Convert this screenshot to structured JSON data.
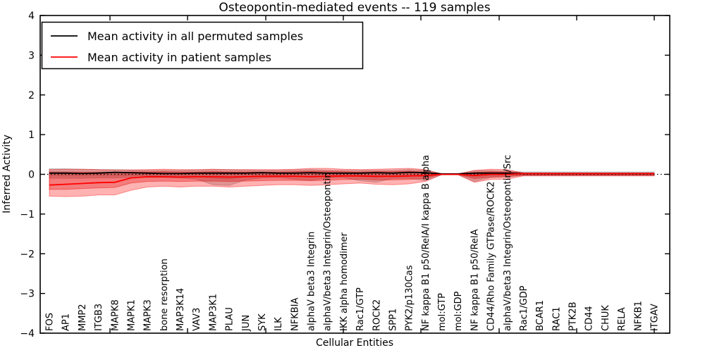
{
  "chart_data": {
    "type": "line",
    "title": "Osteopontin-mediated events -- 119 samples",
    "xlabel": "Cellular Entities",
    "ylabel": "Inferred Activity",
    "ylim": [
      -4,
      4
    ],
    "grid": false,
    "zero_line": "dotted",
    "legend_position": "upper-left",
    "yticks": [
      {
        "value": 4,
        "label": "4"
      },
      {
        "value": 3,
        "label": "3"
      },
      {
        "value": 2,
        "label": "2"
      },
      {
        "value": 1,
        "label": "1"
      },
      {
        "value": 0,
        "label": "0"
      },
      {
        "value": -1,
        "label": "−1"
      },
      {
        "value": -2,
        "label": "−2"
      },
      {
        "value": -3,
        "label": "−3"
      },
      {
        "value": -4,
        "label": "−4"
      }
    ],
    "categories": [
      "FOS",
      "AP1",
      "MMP2",
      "ITGB3",
      "MAPK8",
      "MAPK1",
      "MAPK3",
      "bone resorption",
      "MAP3K14",
      "VAV3",
      "MAP3K1",
      "PLAU",
      "JUN",
      "SYK",
      "ILK",
      "NFKBIA",
      "alphaV beta3 Integrin",
      "alphaV/beta3 Integrin/Osteopontin",
      "IKK alpha homodimer",
      "Rac1/GTP",
      "ROCK2",
      "SPP1",
      "PYK2/p130Cas",
      "NF kappa B1 p50/RelA/I kappa B alpha",
      "mol:GTP",
      "mol:GDP",
      "NF kappa B1 p50/RelA",
      "CD44/Rho Family GTPase/ROCK2",
      "alphaV/beta3 Integrin/Osteopontin/Src",
      "Rac1/GDP",
      "BCAR1",
      "RAC1",
      "PTK2B",
      "CD44",
      "CHUK",
      "RELA",
      "NFKB1",
      "ITGAV"
    ],
    "series": [
      {
        "name": "Mean activity in all permuted samples",
        "color": "#000000",
        "values": [
          0.03,
          0.03,
          0.02,
          0.03,
          0.05,
          0.04,
          0.03,
          0.02,
          0.02,
          0.03,
          0.03,
          0.03,
          0.03,
          0.04,
          0.03,
          0.03,
          0.04,
          0.03,
          0.03,
          0.03,
          0.04,
          0.03,
          0.05,
          0.04,
          0.01,
          0.01,
          0.03,
          0.03,
          0.03,
          0.02,
          0.02,
          0.02,
          0.02,
          0.02,
          0.02,
          0.02,
          0.02,
          0.02
        ]
      },
      {
        "name": "Mean activity in patient samples",
        "color": "#ff0000",
        "values": [
          -0.27,
          -0.25,
          -0.23,
          -0.21,
          -0.2,
          -0.09,
          -0.06,
          -0.06,
          -0.07,
          -0.06,
          -0.06,
          -0.07,
          -0.06,
          -0.05,
          -0.05,
          -0.05,
          -0.06,
          -0.05,
          -0.04,
          -0.04,
          -0.05,
          -0.05,
          -0.04,
          -0.03,
          0.0,
          0.0,
          -0.03,
          0.0,
          0.0,
          0.02,
          0.02,
          0.02,
          0.02,
          0.02,
          0.02,
          0.02,
          0.02,
          0.02
        ]
      }
    ],
    "bands": [
      {
        "name": "permuted-spread-outer",
        "color": "#808080",
        "opacity": 0.35,
        "top": [
          0.14,
          0.14,
          0.13,
          0.12,
          0.12,
          0.11,
          0.1,
          0.1,
          0.1,
          0.11,
          0.12,
          0.12,
          0.11,
          0.1,
          0.1,
          0.11,
          0.12,
          0.1,
          0.1,
          0.1,
          0.1,
          0.1,
          0.12,
          0.1,
          0.02,
          0.02,
          0.09,
          0.09,
          0.08,
          0.06,
          0.06,
          0.06,
          0.06,
          0.06,
          0.06,
          0.06,
          0.06,
          0.06
        ],
        "bottom": [
          -0.1,
          -0.1,
          -0.1,
          -0.09,
          -0.09,
          -0.08,
          -0.08,
          -0.08,
          -0.09,
          -0.12,
          -0.26,
          -0.28,
          -0.14,
          -0.09,
          -0.08,
          -0.12,
          -0.15,
          -0.09,
          -0.08,
          -0.16,
          -0.2,
          -0.1,
          -0.1,
          -0.16,
          -0.01,
          -0.01,
          -0.18,
          -0.08,
          -0.06,
          -0.03,
          -0.03,
          -0.03,
          -0.03,
          -0.03,
          -0.03,
          -0.03,
          -0.03,
          -0.03
        ]
      },
      {
        "name": "permuted-spread-inner",
        "color": "#808080",
        "opacity": 0.25,
        "top": [
          0.07,
          0.07,
          0.06,
          0.06,
          0.06,
          0.05,
          0.05,
          0.05,
          0.05,
          0.05,
          0.06,
          0.06,
          0.05,
          0.05,
          0.05,
          0.05,
          0.06,
          0.05,
          0.05,
          0.05,
          0.05,
          0.05,
          0.06,
          0.05,
          0.01,
          0.01,
          0.05,
          0.05,
          0.04,
          0.04,
          0.04,
          0.04,
          0.04,
          0.04,
          0.04,
          0.04,
          0.04,
          0.04
        ],
        "bottom": [
          -0.04,
          -0.04,
          -0.04,
          -0.04,
          -0.04,
          -0.03,
          -0.03,
          -0.03,
          -0.04,
          -0.05,
          -0.1,
          -0.12,
          -0.06,
          -0.04,
          -0.03,
          -0.05,
          -0.06,
          -0.04,
          -0.03,
          -0.06,
          -0.08,
          -0.04,
          -0.04,
          -0.06,
          0.0,
          0.0,
          -0.07,
          -0.03,
          -0.02,
          -0.01,
          -0.01,
          -0.01,
          -0.01,
          -0.01,
          -0.01,
          -0.01,
          -0.01,
          -0.01
        ]
      },
      {
        "name": "patient-spread-outer",
        "color": "#ff0000",
        "opacity": 0.3,
        "top": [
          0.12,
          0.13,
          0.13,
          0.12,
          0.11,
          0.11,
          0.12,
          0.13,
          0.12,
          0.12,
          0.13,
          0.12,
          0.12,
          0.12,
          0.12,
          0.13,
          0.15,
          0.15,
          0.13,
          0.12,
          0.13,
          0.14,
          0.15,
          0.12,
          0.01,
          0.01,
          0.1,
          0.13,
          0.12,
          0.03,
          0.03,
          0.03,
          0.03,
          0.03,
          0.03,
          0.03,
          0.03,
          0.03
        ],
        "bottom": [
          -0.55,
          -0.56,
          -0.55,
          -0.52,
          -0.52,
          -0.4,
          -0.32,
          -0.3,
          -0.32,
          -0.3,
          -0.3,
          -0.32,
          -0.3,
          -0.28,
          -0.26,
          -0.26,
          -0.28,
          -0.26,
          -0.24,
          -0.22,
          -0.25,
          -0.26,
          -0.24,
          -0.18,
          -0.01,
          -0.01,
          -0.2,
          -0.13,
          -0.12,
          -0.04,
          -0.04,
          -0.04,
          -0.04,
          -0.04,
          -0.04,
          -0.04,
          -0.04,
          -0.04
        ]
      },
      {
        "name": "patient-spread-inner",
        "color": "#dd0000",
        "opacity": 0.3,
        "top": [
          0.05,
          0.05,
          0.05,
          0.05,
          0.05,
          0.06,
          0.06,
          0.07,
          0.06,
          0.06,
          0.07,
          0.06,
          0.06,
          0.06,
          0.06,
          0.07,
          0.08,
          0.08,
          0.07,
          0.06,
          0.07,
          0.07,
          0.08,
          0.06,
          0.01,
          0.01,
          0.05,
          0.07,
          0.06,
          0.03,
          0.03,
          0.03,
          0.03,
          0.03,
          0.03,
          0.03,
          0.03,
          0.03
        ],
        "bottom": [
          -0.38,
          -0.38,
          -0.36,
          -0.34,
          -0.33,
          -0.22,
          -0.18,
          -0.17,
          -0.18,
          -0.17,
          -0.17,
          -0.18,
          -0.17,
          -0.16,
          -0.15,
          -0.15,
          -0.16,
          -0.15,
          -0.13,
          -0.12,
          -0.14,
          -0.14,
          -0.13,
          -0.1,
          0.0,
          0.0,
          -0.11,
          -0.07,
          -0.06,
          -0.02,
          -0.02,
          -0.02,
          -0.02,
          -0.02,
          -0.02,
          -0.02,
          -0.02,
          -0.02
        ]
      }
    ]
  }
}
